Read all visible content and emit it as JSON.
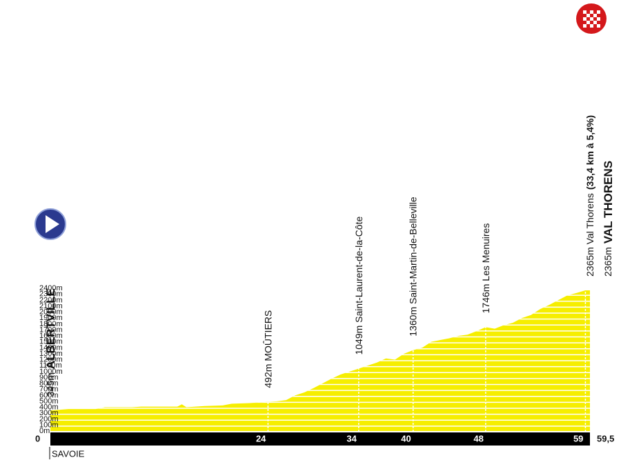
{
  "chart_data": {
    "type": "area",
    "color": "#f6ee00",
    "grid": true,
    "x": [
      0,
      2,
      5,
      6,
      9,
      10,
      14,
      14.5,
      15,
      17,
      19,
      20,
      22,
      24,
      25,
      26,
      27,
      28,
      29,
      30,
      31,
      32,
      33,
      34,
      35,
      36,
      37,
      38,
      39,
      40,
      41,
      42,
      43,
      44,
      45,
      46,
      47,
      48,
      49,
      50,
      51,
      52,
      53,
      54,
      55,
      56,
      57,
      58,
      59,
      59.5
    ],
    "values": [
      345,
      370,
      370,
      400,
      400,
      410,
      410,
      450,
      400,
      420,
      430,
      460,
      470,
      492,
      500,
      520,
      600,
      650,
      720,
      800,
      880,
      950,
      1000,
      1049,
      1100,
      1150,
      1220,
      1200,
      1300,
      1360,
      1400,
      1500,
      1530,
      1560,
      1600,
      1620,
      1680,
      1746,
      1720,
      1780,
      1820,
      1900,
      1950,
      2050,
      2120,
      2200,
      2280,
      2320,
      2365,
      2365
    ],
    "xlim": [
      0,
      59.5
    ],
    "ylim": [
      0,
      2400
    ],
    "xticks": [
      0,
      24,
      34,
      40,
      48,
      59,
      {
        "value": 59.5,
        "label": "59,5"
      }
    ],
    "yticks": [
      {
        "value": 0,
        "label": "0m"
      },
      {
        "value": 100,
        "label": "100m"
      },
      {
        "value": 200,
        "label": "200m"
      },
      {
        "value": 300,
        "label": "300m"
      },
      {
        "value": 400,
        "label": "400m"
      },
      {
        "value": 500,
        "label": "500m"
      },
      {
        "value": 600,
        "label": "600m"
      },
      {
        "value": 700,
        "label": "700m"
      },
      {
        "value": 800,
        "label": "800m"
      },
      {
        "value": 900,
        "label": "900m"
      },
      {
        "value": 1000,
        "label": "1000m"
      },
      {
        "value": 1100,
        "label": "1100m"
      },
      {
        "value": 1200,
        "label": "1200m"
      },
      {
        "value": 1300,
        "label": "1300m"
      },
      {
        "value": 1400,
        "label": "1400m"
      },
      {
        "value": 1500,
        "label": "1500m"
      },
      {
        "value": 1600,
        "label": "1600m"
      },
      {
        "value": 1700,
        "label": "1700m"
      },
      {
        "value": 1800,
        "label": "1800m"
      },
      {
        "value": 1900,
        "label": "1900m"
      },
      {
        "value": 2000,
        "label": "2000m"
      },
      {
        "value": 2100,
        "label": "2100m"
      },
      {
        "value": 2200,
        "label": "2200m"
      },
      {
        "value": 2300,
        "label": "2300m"
      },
      {
        "value": 2400,
        "label": "2400m"
      }
    ],
    "region": "SAVOIE",
    "annotations": [
      {
        "x": 0,
        "lines": [
          [
            {
              "text": "345m",
              "bold": false
            },
            {
              "text": "ALBERTVILLE",
              "bold": true
            }
          ]
        ]
      },
      {
        "x": 24,
        "lines": [
          [
            {
              "text": "492m MOÛTIERS",
              "bold": false
            }
          ]
        ]
      },
      {
        "x": 34,
        "lines": [
          [
            {
              "text": "1049m Saint-Laurent-de-la-Côte",
              "bold": false
            }
          ]
        ]
      },
      {
        "x": 40,
        "lines": [
          [
            {
              "text": "1360m Saint-Martin-de-Belleville",
              "bold": false
            }
          ]
        ]
      },
      {
        "x": 48,
        "lines": [
          [
            {
              "text": "1746m Les Menuires",
              "bold": false
            }
          ]
        ]
      },
      {
        "x": 59.5,
        "lines": [
          [
            {
              "text": "2365m Val Thorens",
              "bold": false
            },
            {
              "text": "(33,4 km à 5,4%)",
              "bold": true
            }
          ],
          [
            {
              "text": "2365m",
              "bold": false
            },
            {
              "text": "VAL THORENS",
              "bold": true
            }
          ]
        ]
      }
    ]
  }
}
